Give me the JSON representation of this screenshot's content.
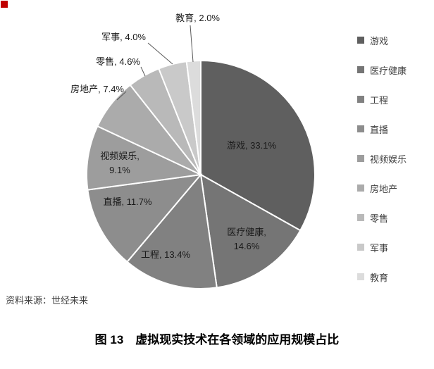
{
  "figure": {
    "caption": "图 13　虚拟现实技术在各领域的应用规模占比",
    "source_note": "资料来源：世经未来"
  },
  "decorations": {
    "corner_marker_color": "#c00000"
  },
  "chart_data": {
    "type": "pie",
    "title": "图 13　虚拟现实技术在各领域的应用规模占比",
    "legend_position": "right",
    "direction": "clockwise",
    "start_angle_deg": 0,
    "categories": [
      "游戏",
      "医疗健康",
      "工程",
      "直播",
      "视频娱乐",
      "房地产",
      "零售",
      "军事",
      "教育"
    ],
    "values": [
      33.1,
      14.6,
      13.4,
      11.7,
      9.1,
      7.4,
      4.6,
      4.0,
      2.0
    ],
    "colors": [
      "#5f5f5f",
      "#757575",
      "#818181",
      "#8d8d8d",
      "#9d9d9d",
      "#ababab",
      "#b9b9b9",
      "#c9c9c9",
      "#dcdcdc"
    ],
    "value_suffix": "%",
    "data_labels": [
      "游戏, 33.1%",
      "医疗健康, 14.6%",
      "工程, 13.4%",
      "直播, 11.7%",
      "视频娱乐, 9.1%",
      "房地产, 7.4%",
      "零售, 4.6%",
      "军事, 4.0%",
      "教育, 2.0%"
    ]
  }
}
